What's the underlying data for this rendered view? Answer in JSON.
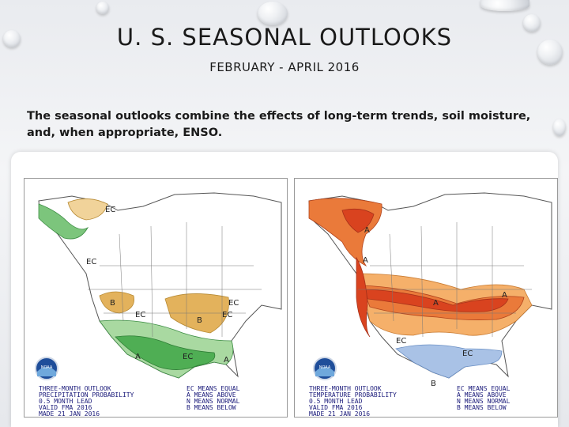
{
  "slide": {
    "title": "U. S. SEASONAL OUTLOOKS",
    "subtitle": "FEBRUARY - APRIL 2016",
    "description": "The seasonal outlooks combine the effects of long-term trends, soil moisture, and, when appropriate, ENSO."
  },
  "maps": [
    {
      "name": "precipitation",
      "logo": "NOAA",
      "caption": [
        "THREE-MONTH OUTLOOK",
        "PRECIPITATION PROBABILITY",
        "0.5 MONTH LEAD",
        "VALID FMA 2016",
        "MADE 21 JAN 2016"
      ],
      "legend": [
        "EC MEANS EQUAL",
        "A MEANS ABOVE",
        "N MEANS NORMAL",
        "B MEANS BELOW"
      ],
      "labels": [
        "EC",
        "EC",
        "B",
        "EC",
        "B",
        "EC",
        "EC",
        "A",
        "A",
        "EC"
      ],
      "colors": {
        "above": "#4fae54",
        "above_light": "#a9d9a1",
        "below": "#d9a441",
        "below_light": "#f1d39a"
      }
    },
    {
      "name": "temperature",
      "logo": "NOAA",
      "caption": [
        "THREE-MONTH OUTLOOK",
        "TEMPERATURE PROBABILITY",
        "0.5 MONTH LEAD",
        "VALID FMA 2016",
        "MADE 21 JAN 2016"
      ],
      "legend": [
        "EC MEANS EQUAL",
        "A MEANS ABOVE",
        "N MEANS NORMAL",
        "B MEANS BELOW"
      ],
      "labels": [
        "A",
        "A",
        "A",
        "A",
        "EC",
        "EC",
        "B"
      ],
      "colors": {
        "above": "#d9431f",
        "above_mid": "#ea7a3a",
        "above_light": "#f5b06a",
        "below": "#a9c2e6"
      }
    }
  ]
}
